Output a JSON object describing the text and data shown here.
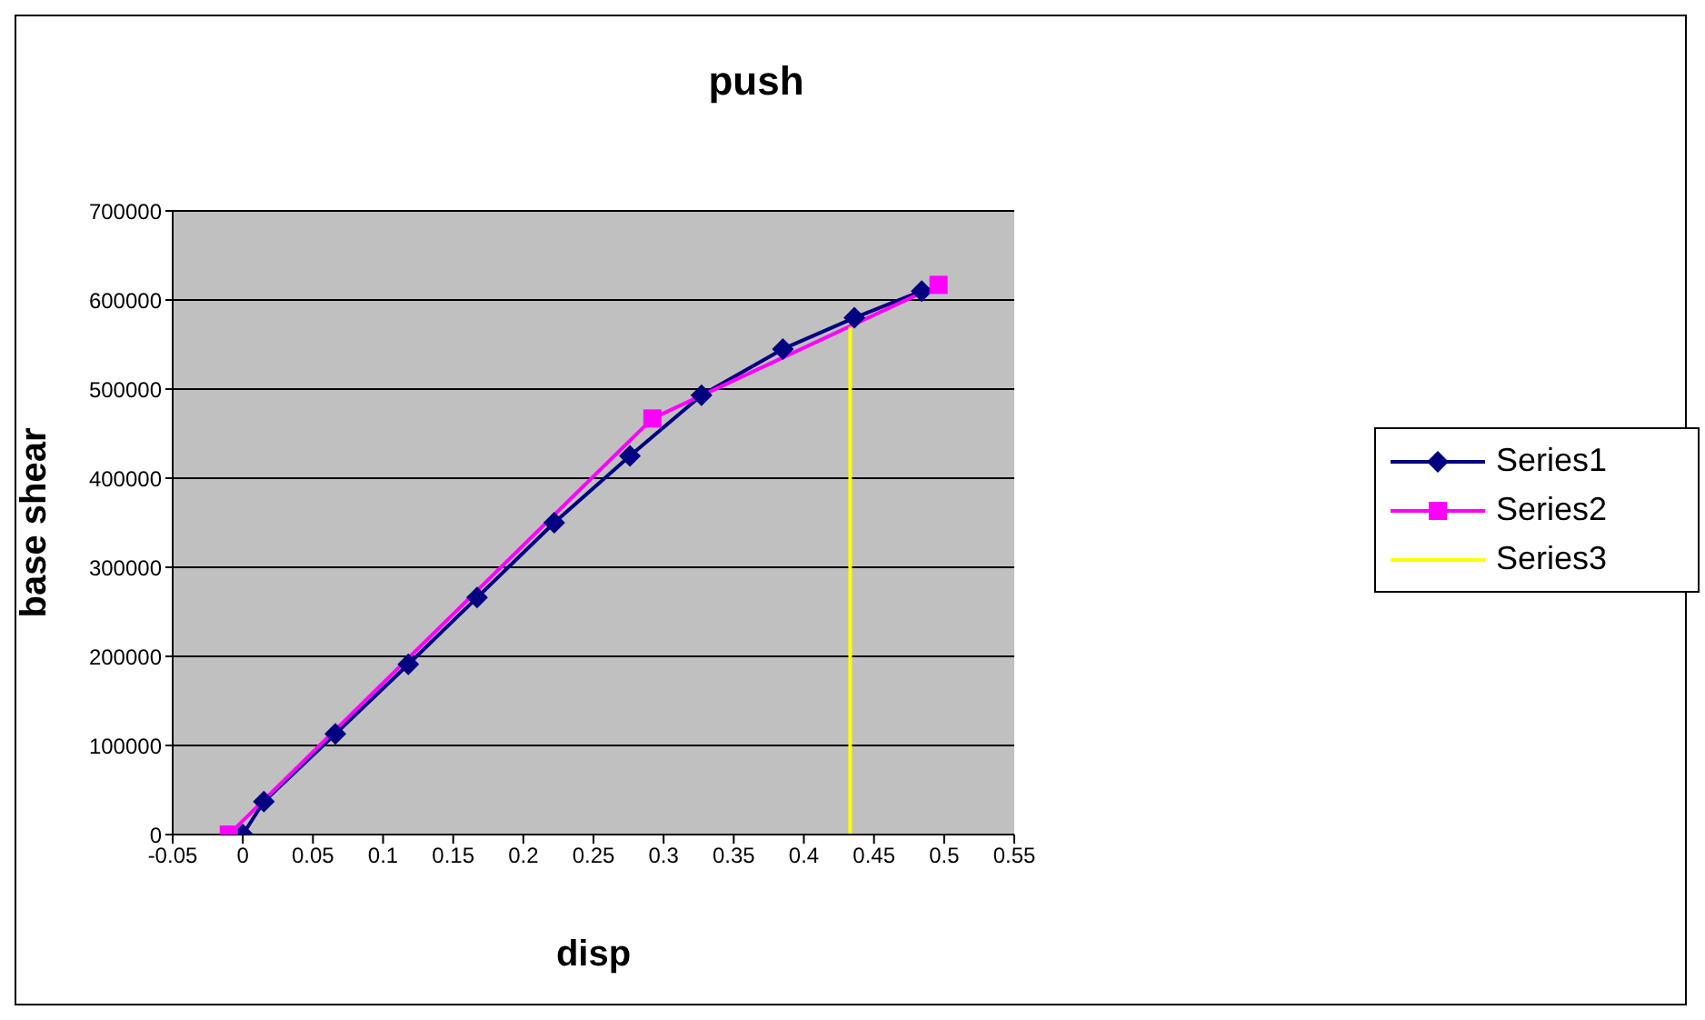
{
  "chart_data": {
    "type": "line",
    "title": "push",
    "xlabel": "disp",
    "ylabel": "base shear",
    "xlim": [
      -0.05,
      0.55
    ],
    "xticks": [
      -0.05,
      0,
      0.05,
      0.1,
      0.15,
      0.2,
      0.25,
      0.3,
      0.35,
      0.4,
      0.45,
      0.5,
      0.55
    ],
    "ylim": [
      0,
      700000
    ],
    "yticks": [
      0,
      100000,
      200000,
      300000,
      400000,
      500000,
      600000,
      700000
    ],
    "grid": "y",
    "legend": "right",
    "series": [
      {
        "name": "Series1",
        "color": "#000080",
        "marker": "diamond",
        "x": [
          0,
          0.015,
          0.066,
          0.118,
          0.167,
          0.222,
          0.276,
          0.327,
          0.385,
          0.436,
          0.484
        ],
        "values": [
          0,
          37000,
          113000,
          191000,
          266000,
          350000,
          425000,
          493000,
          545000,
          580000,
          610000
        ]
      },
      {
        "name": "Series2",
        "color": "#ff00ff",
        "marker": "square",
        "x": [
          -0.01,
          0.292,
          0.496
        ],
        "values": [
          0,
          467000,
          617000
        ]
      },
      {
        "name": "Series3",
        "color": "#ffff00",
        "marker": "none",
        "x": [
          0.433,
          0.433
        ],
        "values": [
          0,
          570000
        ]
      }
    ]
  }
}
